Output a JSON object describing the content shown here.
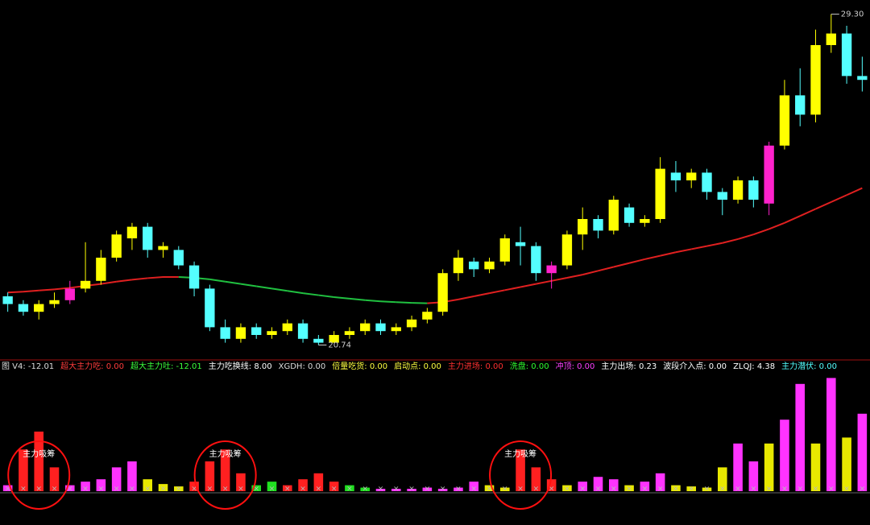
{
  "chart_data": {
    "type": "candlestick",
    "ylim": [
      20.5,
      29.5
    ],
    "open": [
      22.0,
      21.8,
      21.6,
      21.8,
      21.9,
      22.2,
      22.4,
      23.0,
      23.5,
      23.8,
      23.2,
      23.2,
      22.8,
      22.2,
      21.2,
      20.9,
      21.2,
      21.0,
      21.1,
      21.3,
      20.9,
      20.8,
      21.0,
      21.1,
      21.3,
      21.1,
      21.2,
      21.4,
      21.6,
      22.6,
      22.9,
      22.7,
      22.9,
      23.4,
      23.3,
      22.6,
      22.8,
      23.6,
      24.0,
      23.7,
      24.3,
      23.9,
      24.0,
      25.2,
      25.0,
      25.2,
      24.7,
      24.5,
      25.0,
      24.4,
      25.9,
      27.2,
      26.7,
      28.5,
      28.8,
      27.7
    ],
    "close": [
      21.8,
      21.6,
      21.8,
      21.9,
      22.2,
      22.4,
      23.0,
      23.6,
      23.8,
      23.2,
      23.3,
      22.8,
      22.2,
      21.2,
      20.9,
      21.2,
      21.0,
      21.1,
      21.3,
      20.9,
      20.8,
      21.0,
      21.1,
      21.3,
      21.1,
      21.2,
      21.4,
      21.6,
      22.6,
      23.0,
      22.7,
      22.9,
      23.5,
      23.3,
      22.6,
      22.8,
      23.6,
      24.0,
      23.7,
      24.5,
      23.9,
      24.0,
      25.3,
      25.0,
      25.2,
      24.7,
      24.5,
      25.0,
      24.5,
      25.9,
      27.2,
      26.7,
      28.5,
      28.8,
      27.7,
      27.6
    ],
    "high": [
      22.1,
      21.9,
      21.9,
      22.1,
      22.4,
      23.4,
      23.2,
      23.7,
      23.9,
      23.9,
      23.4,
      23.3,
      22.9,
      22.3,
      21.4,
      21.3,
      21.3,
      21.2,
      21.4,
      21.4,
      21.0,
      21.1,
      21.2,
      21.4,
      21.4,
      21.3,
      21.5,
      21.7,
      22.7,
      23.2,
      23.0,
      23.0,
      23.6,
      23.8,
      23.4,
      22.9,
      23.7,
      24.3,
      24.1,
      24.6,
      24.4,
      24.1,
      25.6,
      25.5,
      25.3,
      25.3,
      24.8,
      25.1,
      25.1,
      26.0,
      27.6,
      27.9,
      28.9,
      29.3,
      29.0,
      28.2
    ],
    "low": [
      21.6,
      21.5,
      21.4,
      21.7,
      21.8,
      22.1,
      22.3,
      22.9,
      23.2,
      23.0,
      23.0,
      22.7,
      22.0,
      21.1,
      20.8,
      20.8,
      20.9,
      20.9,
      21.0,
      20.8,
      20.74,
      20.8,
      20.9,
      21.0,
      21.0,
      21.0,
      21.1,
      21.3,
      21.5,
      22.4,
      22.5,
      22.6,
      22.8,
      22.8,
      22.4,
      22.2,
      22.7,
      23.2,
      23.5,
      23.6,
      23.8,
      23.8,
      23.9,
      24.7,
      24.8,
      24.5,
      24.1,
      24.4,
      24.3,
      24.1,
      25.8,
      26.4,
      26.5,
      28.3,
      27.5,
      27.3
    ],
    "up_color": "#ffff00",
    "down_color": "#54ffff",
    "highlight": [
      4,
      35,
      49
    ],
    "highlight_color": "#ff22cc",
    "ma": [
      22.1,
      22.12,
      22.15,
      22.18,
      22.22,
      22.27,
      22.32,
      22.38,
      22.43,
      22.47,
      22.5,
      22.5,
      22.48,
      22.44,
      22.38,
      22.32,
      22.26,
      22.2,
      22.14,
      22.08,
      22.03,
      21.98,
      21.94,
      21.9,
      21.87,
      21.85,
      21.83,
      21.82,
      21.85,
      21.92,
      22.0,
      22.08,
      22.16,
      22.24,
      22.32,
      22.4,
      22.48,
      22.56,
      22.66,
      22.76,
      22.86,
      22.96,
      23.05,
      23.14,
      23.22,
      23.3,
      23.38,
      23.48,
      23.6,
      23.74,
      23.9,
      24.08,
      24.26,
      24.44,
      24.62,
      24.8
    ],
    "ma_rise_color": "#e02020",
    "ma_fall_color": "#20c040",
    "annotations": [
      {
        "index": 53,
        "value": 29.3,
        "label": "29.30"
      },
      {
        "index": 20,
        "value": 20.74,
        "label": "20.74"
      }
    ],
    "indicator": {
      "legend": [
        {
          "text": "图 V4: -12.01",
          "color": "#dddddd"
        },
        {
          "text": "超大主力吃: 0.00",
          "color": "#ff3c3c"
        },
        {
          "text": "超大主力吐: -12.01",
          "color": "#3cff3c"
        },
        {
          "text": "主力吃换线: 8.00",
          "color": "#ffffff"
        },
        {
          "text": "XGDH: 0.00",
          "color": "#dddddd"
        },
        {
          "text": "倍量吃货: 0.00",
          "color": "#ffff40"
        },
        {
          "text": "启动点: 0.00",
          "color": "#ffff40"
        },
        {
          "text": "主力进场: 0.00",
          "color": "#ff3030"
        },
        {
          "text": "洗盘: 0.00",
          "color": "#30ff30"
        },
        {
          "text": "冲顶: 0.00",
          "color": "#ff40ff"
        },
        {
          "text": "主力出场: 0.23",
          "color": "#ffffff"
        },
        {
          "text": "波段介入点: 0.00",
          "color": "#ffffff"
        },
        {
          "text": "ZLQJ: 4.38",
          "color": "#ffffff"
        },
        {
          "text": "主力潜伏: 0.00",
          "color": "#54ffff"
        }
      ],
      "ylim": [
        0,
        100
      ],
      "values": [
        5,
        35,
        50,
        20,
        5,
        8,
        10,
        20,
        25,
        10,
        6,
        4,
        8,
        25,
        35,
        15,
        5,
        8,
        5,
        10,
        15,
        8,
        5,
        3,
        2,
        2,
        2,
        3,
        2,
        3,
        8,
        5,
        3,
        35,
        20,
        10,
        5,
        8,
        12,
        10,
        5,
        8,
        15,
        5,
        4,
        3,
        20,
        40,
        25,
        40,
        60,
        90,
        40,
        95,
        45,
        65
      ],
      "colors": [
        "#ff33ff",
        "#ff2020",
        "#ff2020",
        "#ff2020",
        "#ff33ff",
        "#ff33ff",
        "#ff33ff",
        "#ff33ff",
        "#ff33ff",
        "#e8e800",
        "#e8e800",
        "#e8e800",
        "#ff2020",
        "#ff2020",
        "#ff2020",
        "#ff2020",
        "#20e020",
        "#20e020",
        "#ff2020",
        "#ff2020",
        "#ff2020",
        "#ff2020",
        "#20e020",
        "#20e020",
        "#ff33ff",
        "#ff33ff",
        "#ff33ff",
        "#ff33ff",
        "#ff33ff",
        "#ff33ff",
        "#ff33ff",
        "#e8e800",
        "#e8e800",
        "#ff2020",
        "#ff2020",
        "#ff2020",
        "#e8e800",
        "#ff33ff",
        "#ff33ff",
        "#ff33ff",
        "#e8e800",
        "#ff33ff",
        "#ff33ff",
        "#e8e800",
        "#e8e800",
        "#e8e800",
        "#e8e800",
        "#ff33ff",
        "#ff33ff",
        "#e8e800",
        "#ff33ff",
        "#ff33ff",
        "#e8e800",
        "#ff33ff",
        "#e8e800",
        "#ff33ff"
      ],
      "callouts": [
        {
          "index": 2,
          "text": "主力吸筹"
        },
        {
          "index": 14,
          "text": "主力吸筹"
        },
        {
          "index": 33,
          "text": "主力吸筹"
        }
      ]
    }
  }
}
